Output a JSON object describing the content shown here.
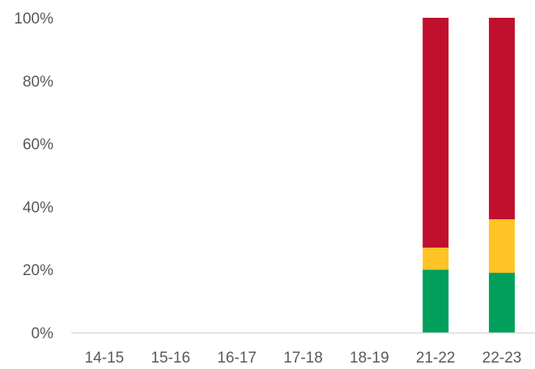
{
  "chart_data": {
    "type": "bar",
    "stacked": true,
    "categories": [
      "14-15",
      "15-16",
      "16-17",
      "17-18",
      "18-19",
      "21-22",
      "22-23"
    ],
    "series": [
      {
        "color": "#00a05a",
        "values": [
          0,
          0,
          0,
          0,
          0,
          20,
          19
        ]
      },
      {
        "color": "#ffc325",
        "values": [
          0,
          0,
          0,
          0,
          0,
          7,
          17
        ]
      },
      {
        "color": "#c0102e",
        "values": [
          0,
          0,
          0,
          0,
          0,
          73,
          64
        ]
      }
    ],
    "y_ticks": [
      "0%",
      "20%",
      "40%",
      "60%",
      "80%",
      "100%"
    ],
    "y_tick_values": [
      0,
      20,
      40,
      60,
      80,
      100
    ],
    "ylim": [
      0,
      100
    ],
    "grid": false,
    "legend": "none"
  }
}
